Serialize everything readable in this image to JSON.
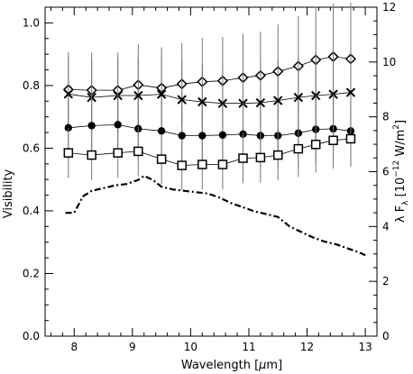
{
  "chart_data": {
    "type": "scatter",
    "xlabel": "Wavelength [μm]",
    "ylabel": "Visibility",
    "ylabel_right": "λ F_λ [10^-12 W/m^2]",
    "xlim": [
      7.5,
      13.2
    ],
    "ylim": [
      0.0,
      1.05
    ],
    "ylim_right": [
      0,
      12
    ],
    "xticks": [
      "8",
      "9",
      "10",
      "11",
      "12",
      "13"
    ],
    "xtick_values": [
      8,
      9,
      10,
      11,
      12,
      13
    ],
    "yticks": [
      "0.0",
      "0.2",
      "0.4",
      "0.6",
      "0.8",
      "1.0"
    ],
    "ytick_values": [
      0.0,
      0.2,
      0.4,
      0.6,
      0.8,
      1.0
    ],
    "yticks_right": [
      "0",
      "2",
      "4",
      "6",
      "8",
      "10",
      "12"
    ],
    "ytick_values_right": [
      0,
      2,
      4,
      6,
      8,
      10,
      12
    ],
    "x": [
      7.9,
      8.3,
      8.75,
      9.1,
      9.5,
      9.85,
      10.2,
      10.55,
      10.9,
      11.2,
      11.5,
      11.85,
      12.15,
      12.45,
      12.75
    ],
    "series": [
      {
        "marker": "diamond",
        "values": [
          0.787,
          0.785,
          0.785,
          0.802,
          0.792,
          0.805,
          0.812,
          0.815,
          0.825,
          0.832,
          0.845,
          0.862,
          0.882,
          0.892,
          0.885
        ],
        "errors": [
          0.12,
          0.12,
          0.12,
          0.13,
          0.13,
          0.13,
          0.14,
          0.14,
          0.14,
          0.14,
          0.15,
          0.16,
          0.17,
          0.17,
          0.18
        ]
      },
      {
        "marker": "x",
        "values": [
          0.773,
          0.762,
          0.768,
          0.768,
          0.772,
          0.755,
          0.748,
          0.743,
          0.743,
          0.745,
          0.752,
          0.762,
          0.768,
          0.772,
          0.778
        ],
        "errors": [
          0.12,
          0.12,
          0.12,
          0.12,
          0.12,
          0.12,
          0.12,
          0.12,
          0.12,
          0.13,
          0.13,
          0.13,
          0.14,
          0.14,
          0.14
        ]
      },
      {
        "marker": "filled-circle",
        "values": [
          0.665,
          0.672,
          0.675,
          0.662,
          0.655,
          0.64,
          0.64,
          0.642,
          0.645,
          0.64,
          0.64,
          0.648,
          0.66,
          0.662,
          0.655
        ],
        "errors": [
          0.1,
          0.1,
          0.1,
          0.1,
          0.1,
          0.1,
          0.1,
          0.1,
          0.1,
          0.1,
          0.1,
          0.11,
          0.11,
          0.11,
          0.11
        ]
      },
      {
        "marker": "open-square",
        "values": [
          0.585,
          0.578,
          0.585,
          0.59,
          0.565,
          0.545,
          0.548,
          0.548,
          0.568,
          0.57,
          0.578,
          0.598,
          0.612,
          0.625,
          0.63
        ],
        "errors": [
          0.08,
          0.08,
          0.08,
          0.08,
          0.08,
          0.08,
          0.08,
          0.08,
          0.08,
          0.08,
          0.08,
          0.09,
          0.09,
          0.09,
          0.09
        ]
      }
    ],
    "spectrum": {
      "axis": "right",
      "style": "dash-dot",
      "x": [
        7.85,
        8.0,
        8.15,
        8.3,
        8.5,
        8.7,
        8.9,
        9.1,
        9.2,
        9.35,
        9.5,
        9.7,
        9.9,
        10.1,
        10.3,
        10.5,
        10.7,
        10.9,
        11.1,
        11.3,
        11.5,
        11.7,
        11.9,
        12.1,
        12.3,
        12.5,
        12.7,
        12.9,
        13.0
      ],
      "values": [
        4.5,
        4.5,
        5.1,
        5.3,
        5.4,
        5.5,
        5.55,
        5.7,
        5.85,
        5.7,
        5.45,
        5.35,
        5.3,
        5.25,
        5.2,
        5.05,
        4.85,
        4.7,
        4.55,
        4.45,
        4.35,
        4.0,
        3.8,
        3.6,
        3.45,
        3.35,
        3.2,
        3.05,
        2.95
      ]
    },
    "grid": false,
    "legend": "none"
  }
}
